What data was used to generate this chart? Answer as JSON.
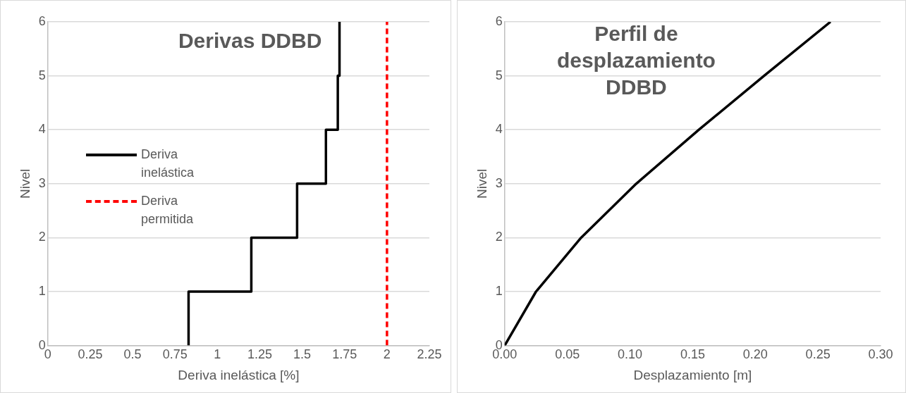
{
  "chart_data": [
    {
      "type": "line",
      "title": "Derivas DDBD",
      "xlabel": "Deriva inelástica [%]",
      "ylabel": "Nivel",
      "xlim": [
        0,
        2.25
      ],
      "xticks": [
        0,
        0.25,
        0.5,
        0.75,
        1,
        1.25,
        1.5,
        1.75,
        2,
        2.25
      ],
      "ylim": [
        0,
        6
      ],
      "yticks": [
        0,
        1,
        2,
        3,
        4,
        5,
        6
      ],
      "grid": "y",
      "legend": "left",
      "marker": "none",
      "series": [
        {
          "name": "Deriva inelástica",
          "color": "#000000",
          "x": [
            0.83,
            0.83,
            1.2,
            1.2,
            1.47,
            1.47,
            1.64,
            1.64,
            1.71,
            1.71,
            1.72,
            1.72
          ],
          "values": [
            0,
            1,
            1,
            2,
            2,
            3,
            3,
            4,
            4,
            5,
            5,
            6
          ]
        },
        {
          "name": "Deriva permitida",
          "color": "#ff0000",
          "line_style": "dashed",
          "x": [
            2,
            2
          ],
          "values": [
            0,
            6
          ]
        }
      ]
    },
    {
      "type": "line",
      "title": "Perfil de desplazamiento DDBD",
      "xlabel": "Desplazamiento [m]",
      "ylabel": "Nivel",
      "xlim": [
        0,
        0.3
      ],
      "xticks": [
        {
          "value": 0,
          "label": "0.00"
        },
        {
          "value": 0.05,
          "label": "0.05"
        },
        {
          "value": 0.1,
          "label": "0.10"
        },
        {
          "value": 0.15,
          "label": "0.15"
        },
        {
          "value": 0.2,
          "label": "0.20"
        },
        {
          "value": 0.25,
          "label": "0.25"
        },
        {
          "value": 0.3,
          "label": "0.30"
        }
      ],
      "ylim": [
        0,
        6
      ],
      "yticks": [
        0,
        1,
        2,
        3,
        4,
        5,
        6
      ],
      "grid": "y",
      "marker": "none",
      "series": [
        {
          "color": "#000000",
          "x": [
            0,
            0.025,
            0.061,
            0.105,
            0.155,
            0.207,
            0.26
          ],
          "values": [
            0,
            1,
            2,
            3,
            4,
            5,
            6
          ]
        }
      ]
    }
  ]
}
